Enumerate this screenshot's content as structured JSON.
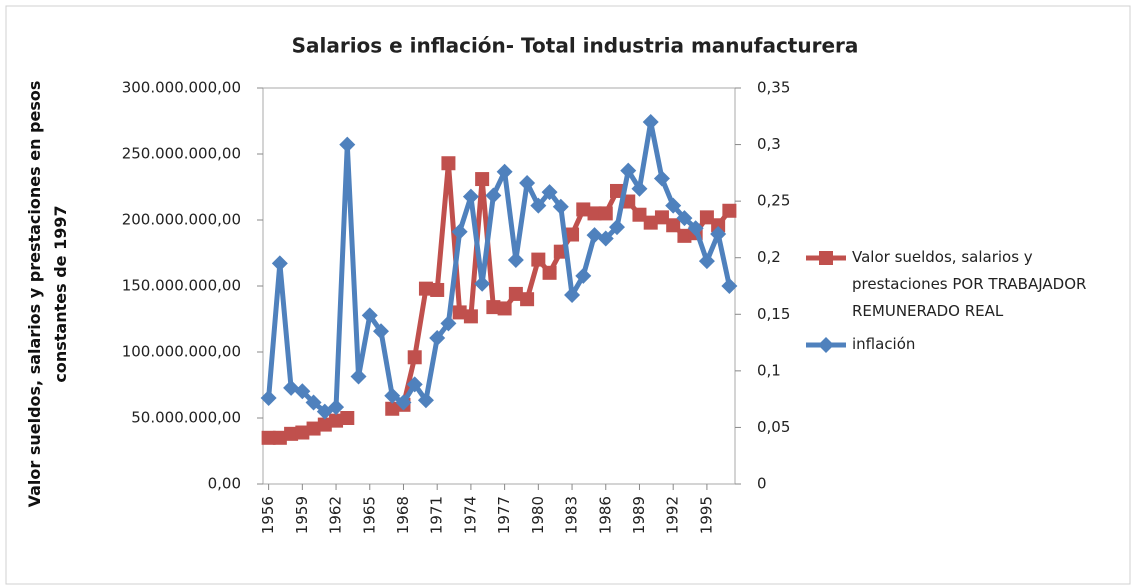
{
  "chart_data": {
    "type": "line",
    "title": "Salarios e inflación- Total industria manufacturera",
    "ylabel": "Valor sueldos, salarios y prestaciones en pesos constantes de 1997",
    "x": [
      1956,
      1957,
      1958,
      1959,
      1960,
      1961,
      1962,
      1963,
      1964,
      1965,
      1966,
      1967,
      1968,
      1969,
      1970,
      1971,
      1972,
      1973,
      1974,
      1975,
      1976,
      1977,
      1978,
      1979,
      1980,
      1981,
      1982,
      1983,
      1984,
      1985,
      1986,
      1987,
      1988,
      1989,
      1990,
      1991,
      1992,
      1993,
      1994,
      1995,
      1996,
      1997
    ],
    "xlim": [
      1955.5,
      1997.5
    ],
    "xticks": [
      1956,
      1959,
      1962,
      1965,
      1968,
      1971,
      1974,
      1977,
      1980,
      1983,
      1986,
      1989,
      1992,
      1995
    ],
    "ylim": [
      0,
      300000000
    ],
    "yticks": [
      {
        "value": 0,
        "label": "0,00"
      },
      {
        "value": 50000000,
        "label": "50.000.000,00"
      },
      {
        "value": 100000000,
        "label": "100.000.000,00"
      },
      {
        "value": 150000000,
        "label": "150.000.000,00"
      },
      {
        "value": 200000000,
        "label": "200.000.000,00"
      },
      {
        "value": 250000000,
        "label": "250.000.000,00"
      },
      {
        "value": 300000000,
        "label": "300.000.000,00"
      }
    ],
    "y2lim": [
      0,
      0.35
    ],
    "y2ticks": [
      0,
      {
        "value": 0.05,
        "label": "0,05"
      },
      {
        "value": 0.1,
        "label": "0,1"
      },
      {
        "value": 0.15,
        "label": "0,15"
      },
      {
        "value": 0.2,
        "label": "0,2"
      },
      {
        "value": 0.25,
        "label": "0,25"
      },
      {
        "value": 0.3,
        "label": "0,3"
      },
      {
        "value": 0.35,
        "label": "0,35"
      }
    ],
    "series": [
      {
        "name": "Valor sueldos, salarios y prestaciones POR TRABAJADOR REMUNERADO  REAL",
        "color": "#c0504d",
        "marker": "square",
        "values": [
          35000000,
          35000000,
          38000000,
          39000000,
          42000000,
          45000000,
          48000000,
          50000000,
          null,
          null,
          null,
          57000000,
          60000000,
          96000000,
          148000000,
          147000000,
          243000000,
          130000000,
          127000000,
          231000000,
          134000000,
          133000000,
          144000000,
          140000000,
          170000000,
          160000000,
          176000000,
          189000000,
          208000000,
          205000000,
          205000000,
          222000000,
          214000000,
          204000000,
          198000000,
          202000000,
          196000000,
          188000000,
          190000000,
          202000000,
          196000000,
          207000000
        ]
      },
      {
        "name": "inflación",
        "color": "#4f81bd",
        "marker": "diamond",
        "axis": "y2",
        "values": [
          0.076,
          0.195,
          0.085,
          0.082,
          0.072,
          0.064,
          0.068,
          0.3,
          0.095,
          0.149,
          0.135,
          0.078,
          0.072,
          0.088,
          0.074,
          0.129,
          0.142,
          0.223,
          0.254,
          0.177,
          0.255,
          0.276,
          0.198,
          0.266,
          0.246,
          0.258,
          0.245,
          0.167,
          0.184,
          0.22,
          0.217,
          0.227,
          0.277,
          0.261,
          0.32,
          0.27,
          0.246,
          0.235,
          0.226,
          0.197,
          0.221,
          0.175
        ]
      }
    ],
    "grid": false,
    "legend": "right"
  }
}
